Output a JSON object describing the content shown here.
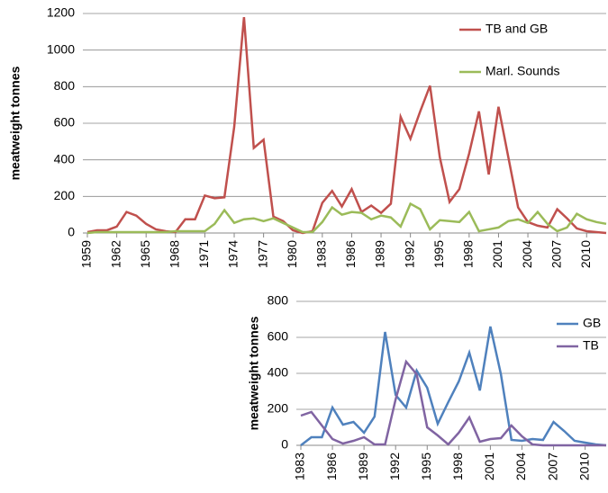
{
  "chart_data": [
    {
      "type": "line",
      "y_label": "meatweight  tonnes",
      "grid": true,
      "legend": "upper right",
      "x": [
        1959,
        1960,
        1961,
        1962,
        1963,
        1964,
        1965,
        1966,
        1967,
        1968,
        1969,
        1970,
        1971,
        1972,
        1973,
        1974,
        1975,
        1976,
        1977,
        1978,
        1979,
        1980,
        1981,
        1982,
        1983,
        1984,
        1985,
        1986,
        1987,
        1988,
        1989,
        1990,
        1991,
        1992,
        1993,
        1994,
        1995,
        1996,
        1997,
        1998,
        1999,
        2000,
        2001,
        2002,
        2003,
        2004,
        2005,
        2006,
        2007,
        2008,
        2009,
        2010,
        2011,
        2012
      ],
      "xlim": [
        1959,
        2012
      ],
      "xticks": [
        1959,
        1962,
        1965,
        1968,
        1971,
        1974,
        1977,
        1980,
        1983,
        1986,
        1989,
        1992,
        1995,
        1998,
        2001,
        2004,
        2007,
        2010
      ],
      "ylim": [
        0,
        1200
      ],
      "yticks": [
        0,
        200,
        400,
        600,
        800,
        1000,
        1200
      ],
      "series": [
        {
          "name": "TB and GB",
          "color": "#c0504d",
          "values": [
            5,
            15,
            15,
            35,
            115,
            95,
            50,
            20,
            10,
            5,
            75,
            75,
            205,
            190,
            195,
            580,
            1180,
            465,
            510,
            90,
            65,
            15,
            0,
            10,
            165,
            230,
            145,
            240,
            115,
            150,
            110,
            160,
            635,
            515,
            665,
            805,
            415,
            170,
            240,
            435,
            665,
            320,
            690,
            415,
            140,
            60,
            40,
            30,
            130,
            80,
            25,
            10,
            5,
            0
          ]
        },
        {
          "name": "Marl. Sounds",
          "color": "#9bbb59",
          "values": [
            0,
            5,
            5,
            5,
            5,
            5,
            5,
            5,
            5,
            10,
            10,
            10,
            10,
            50,
            125,
            55,
            75,
            80,
            65,
            80,
            55,
            30,
            5,
            5,
            60,
            140,
            100,
            115,
            110,
            75,
            95,
            85,
            35,
            160,
            130,
            20,
            70,
            65,
            60,
            115,
            10,
            20,
            30,
            65,
            75,
            55,
            115,
            50,
            10,
            30,
            105,
            75,
            60,
            50
          ]
        }
      ]
    },
    {
      "type": "line",
      "y_label": "meatweight  tonnes",
      "grid": true,
      "legend": "upper right",
      "x": [
        1983,
        1984,
        1985,
        1986,
        1987,
        1988,
        1989,
        1990,
        1991,
        1992,
        1993,
        1994,
        1995,
        1996,
        1997,
        1998,
        1999,
        2000,
        2001,
        2002,
        2003,
        2004,
        2005,
        2006,
        2007,
        2008,
        2009,
        2010,
        2011,
        2012
      ],
      "xlim": [
        1983,
        2012
      ],
      "xticks": [
        1983,
        1986,
        1989,
        1992,
        1995,
        1998,
        2001,
        2004,
        2007,
        2010
      ],
      "ylim": [
        0,
        800
      ],
      "yticks": [
        0,
        200,
        400,
        600,
        800
      ],
      "series": [
        {
          "name": "GB",
          "color": "#4f81bd",
          "values": [
            0,
            45,
            45,
            210,
            115,
            130,
            70,
            160,
            630,
            280,
            210,
            415,
            320,
            120,
            240,
            355,
            515,
            305,
            660,
            395,
            30,
            25,
            35,
            30,
            130,
            80,
            25,
            15,
            5,
            0
          ]
        },
        {
          "name": "TB",
          "color": "#8064a2",
          "values": [
            165,
            185,
            110,
            35,
            10,
            25,
            45,
            5,
            5,
            255,
            465,
            395,
            100,
            55,
            5,
            70,
            155,
            20,
            35,
            40,
            110,
            50,
            5,
            0,
            0,
            0,
            0,
            0,
            0,
            0
          ]
        }
      ]
    }
  ]
}
